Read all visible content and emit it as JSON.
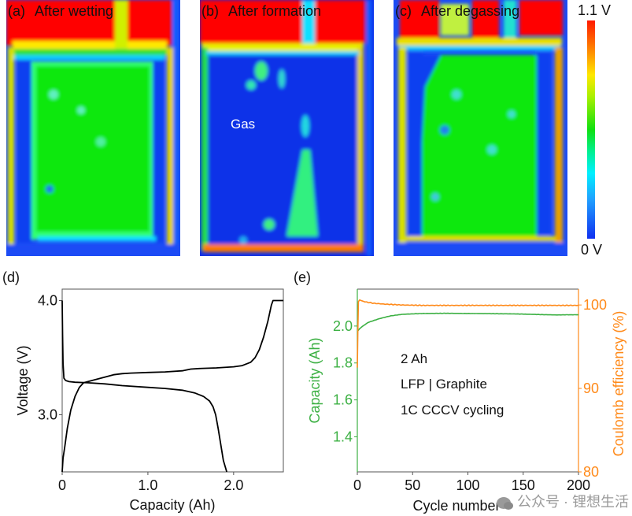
{
  "heatmaps": {
    "panels": [
      {
        "tag": "(a)",
        "title": "After wetting",
        "state": "uniform-green"
      },
      {
        "tag": "(b)",
        "title": "After formation",
        "state": "mostly-blue",
        "annotation": "Gas"
      },
      {
        "tag": "(c)",
        "title": "After degassing",
        "state": "uniform-green"
      }
    ],
    "colorbar": {
      "max_label": "1.1 V",
      "min_label": "0 V",
      "max_value": 1.1,
      "min_value": 0
    }
  },
  "colors": {
    "red": "#ff0000",
    "green": "#10e010",
    "blue": "#1030e8",
    "capacity_green": "#3cb043",
    "ce_orange": "#ff8a1a"
  },
  "watermark": {
    "text": "公众号 · 锂想生活"
  },
  "chart_data": [
    {
      "panel": "(d)",
      "type": "line",
      "title": "",
      "xlabel": "Capacity (Ah)",
      "ylabel": "Voltage (V)",
      "xlim": [
        0,
        2.58
      ],
      "ylim": [
        2.5,
        4.1
      ],
      "xticks": [
        {
          "v": 0,
          "label": "0"
        },
        {
          "v": 1.0,
          "label": "1.0"
        },
        {
          "v": 2.0,
          "label": "2.0"
        }
      ],
      "yticks": [
        {
          "v": 3.0,
          "label": "3.0"
        },
        {
          "v": 4.0,
          "label": "4.0"
        }
      ],
      "grid": false,
      "series": [
        {
          "name": "charge",
          "color": "#000000",
          "x": [
            0,
            0.01,
            0.03,
            0.06,
            0.1,
            0.15,
            0.2,
            0.25,
            0.3,
            0.4,
            0.5,
            0.6,
            0.7,
            0.8,
            1.0,
            1.2,
            1.4,
            1.5,
            1.6,
            1.8,
            2.0,
            2.1,
            2.2,
            2.25,
            2.3,
            2.35,
            2.4,
            2.44,
            2.46,
            2.58
          ],
          "y": [
            2.5,
            2.62,
            2.72,
            2.88,
            3.04,
            3.16,
            3.24,
            3.28,
            3.29,
            3.31,
            3.33,
            3.35,
            3.36,
            3.365,
            3.37,
            3.375,
            3.385,
            3.4,
            3.405,
            3.41,
            3.42,
            3.43,
            3.46,
            3.5,
            3.57,
            3.68,
            3.82,
            3.96,
            4.0,
            4.0
          ]
        },
        {
          "name": "discharge",
          "color": "#000000",
          "x": [
            0,
            0.005,
            0.01,
            0.02,
            0.04,
            0.08,
            0.15,
            0.3,
            0.5,
            0.7,
            1.0,
            1.2,
            1.4,
            1.55,
            1.65,
            1.72,
            1.76,
            1.79,
            1.82,
            1.85,
            1.88,
            1.92
          ],
          "y": [
            4.0,
            3.7,
            3.45,
            3.32,
            3.3,
            3.29,
            3.285,
            3.28,
            3.27,
            3.255,
            3.24,
            3.23,
            3.215,
            3.19,
            3.16,
            3.12,
            3.07,
            3.0,
            2.88,
            2.74,
            2.6,
            2.5
          ]
        }
      ]
    },
    {
      "panel": "(e)",
      "type": "line",
      "title": "",
      "xlabel": "Cycle number",
      "ylabel": "Capacity (Ah)",
      "y2label": "Coulomb efficiency (%)",
      "xlim": [
        0,
        200
      ],
      "ylim": [
        1.21,
        2.2
      ],
      "y2lim": [
        80,
        101.9
      ],
      "xticks": [
        {
          "v": 0,
          "label": "0"
        },
        {
          "v": 50,
          "label": "50"
        },
        {
          "v": 100,
          "label": "100"
        },
        {
          "v": 150,
          "label": "150"
        },
        {
          "v": 200,
          "label": "200"
        }
      ],
      "yticks": [
        {
          "v": 1.4,
          "label": "1.4"
        },
        {
          "v": 1.6,
          "label": "1.6"
        },
        {
          "v": 1.8,
          "label": "1.8"
        },
        {
          "v": 2.0,
          "label": "2.0"
        }
      ],
      "y2ticks": [
        {
          "v": 80,
          "label": "80"
        },
        {
          "v": 90,
          "label": "90"
        },
        {
          "v": 100,
          "label": "100"
        }
      ],
      "grid": false,
      "annotations": [
        "2 Ah",
        "LFP | Graphite",
        "1C CCCV cycling"
      ],
      "series": [
        {
          "name": "Capacity",
          "axis": "left",
          "color": "#3cb043",
          "x": [
            0,
            2,
            5,
            10,
            15,
            20,
            30,
            40,
            50,
            60,
            80,
            100,
            120,
            140,
            160,
            180,
            190,
            200
          ],
          "y": [
            1.97,
            1.985,
            2.0,
            2.02,
            2.03,
            2.04,
            2.055,
            2.063,
            2.066,
            2.068,
            2.069,
            2.068,
            2.067,
            2.066,
            2.063,
            2.06,
            2.061,
            2.061
          ]
        },
        {
          "name": "Coulomb efficiency",
          "axis": "right",
          "color": "#ff8a1a",
          "x": [
            0,
            0.5,
            1,
            2,
            4,
            8,
            15,
            25,
            40,
            60,
            80,
            100,
            120,
            140,
            160,
            180,
            200
          ],
          "y": [
            92.5,
            97,
            100.4,
            100.6,
            100.5,
            100.35,
            100.2,
            100.1,
            100.0,
            99.95,
            99.95,
            99.95,
            99.95,
            99.95,
            99.95,
            99.95,
            99.95
          ]
        }
      ]
    }
  ]
}
